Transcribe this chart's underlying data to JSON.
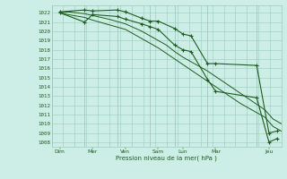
{
  "bg": "#cceee6",
  "grid_color": "#99ccbb",
  "line_color": "#1e5c1e",
  "xlabel": "Pression niveau de la mer( hPa )",
  "ylim_min": 1007.5,
  "ylim_max": 1022.8,
  "ytick_vals": [
    1008,
    1009,
    1010,
    1011,
    1012,
    1013,
    1014,
    1015,
    1016,
    1017,
    1018,
    1019,
    1020,
    1021,
    1022
  ],
  "xlim_min": 0,
  "xlim_max": 280,
  "x_day_labels": [
    "Dim",
    "Mer",
    "Ven",
    "Sam",
    "Lun",
    "Mar",
    "Jeu"
  ],
  "x_day_x": [
    10,
    50,
    90,
    130,
    160,
    200,
    265
  ],
  "x_vlines": [
    0,
    40,
    80,
    120,
    150,
    190,
    250,
    280
  ],
  "smooth1_x": [
    10,
    20,
    40,
    50,
    70,
    90,
    100,
    110,
    120,
    130,
    140,
    150,
    160,
    170,
    180,
    190,
    200,
    210,
    220,
    230,
    240,
    250,
    260,
    265,
    270,
    280
  ],
  "smooth1_y": [
    1022.0,
    1022.1,
    1021.9,
    1021.7,
    1021.3,
    1020.8,
    1020.4,
    1020.0,
    1019.5,
    1019.0,
    1018.5,
    1017.8,
    1017.2,
    1016.7,
    1016.2,
    1015.7,
    1015.1,
    1014.5,
    1013.9,
    1013.3,
    1012.7,
    1012.1,
    1011.5,
    1011.0,
    1010.5,
    1010.0
  ],
  "smooth2_x": [
    10,
    20,
    40,
    50,
    70,
    90,
    100,
    110,
    120,
    130,
    140,
    150,
    160,
    170,
    180,
    190,
    200,
    210,
    220,
    230,
    240,
    250,
    260,
    265,
    270,
    280
  ],
  "smooth2_y": [
    1022.0,
    1021.8,
    1021.5,
    1021.2,
    1020.7,
    1020.2,
    1019.7,
    1019.2,
    1018.7,
    1018.2,
    1017.6,
    1017.0,
    1016.4,
    1015.8,
    1015.2,
    1014.6,
    1014.0,
    1013.4,
    1012.8,
    1012.2,
    1011.7,
    1011.2,
    1010.7,
    1010.2,
    1009.7,
    1009.2
  ],
  "marked1_x": [
    10,
    40,
    50,
    80,
    90,
    110,
    120,
    130,
    150,
    160,
    170,
    190,
    200,
    250,
    265,
    275
  ],
  "marked1_y": [
    1022.1,
    1022.3,
    1022.2,
    1022.3,
    1022.1,
    1021.4,
    1021.1,
    1021.1,
    1020.3,
    1019.7,
    1019.5,
    1016.5,
    1016.5,
    1016.3,
    1009.0,
    1009.2
  ],
  "marked2_x": [
    10,
    40,
    50,
    80,
    90,
    110,
    120,
    130,
    150,
    160,
    170,
    190,
    200,
    250,
    265,
    275
  ],
  "marked2_y": [
    1022.0,
    1021.0,
    1021.8,
    1021.6,
    1021.3,
    1020.8,
    1020.5,
    1020.2,
    1018.5,
    1018.0,
    1017.8,
    1014.8,
    1013.5,
    1012.8,
    1008.0,
    1008.4
  ]
}
